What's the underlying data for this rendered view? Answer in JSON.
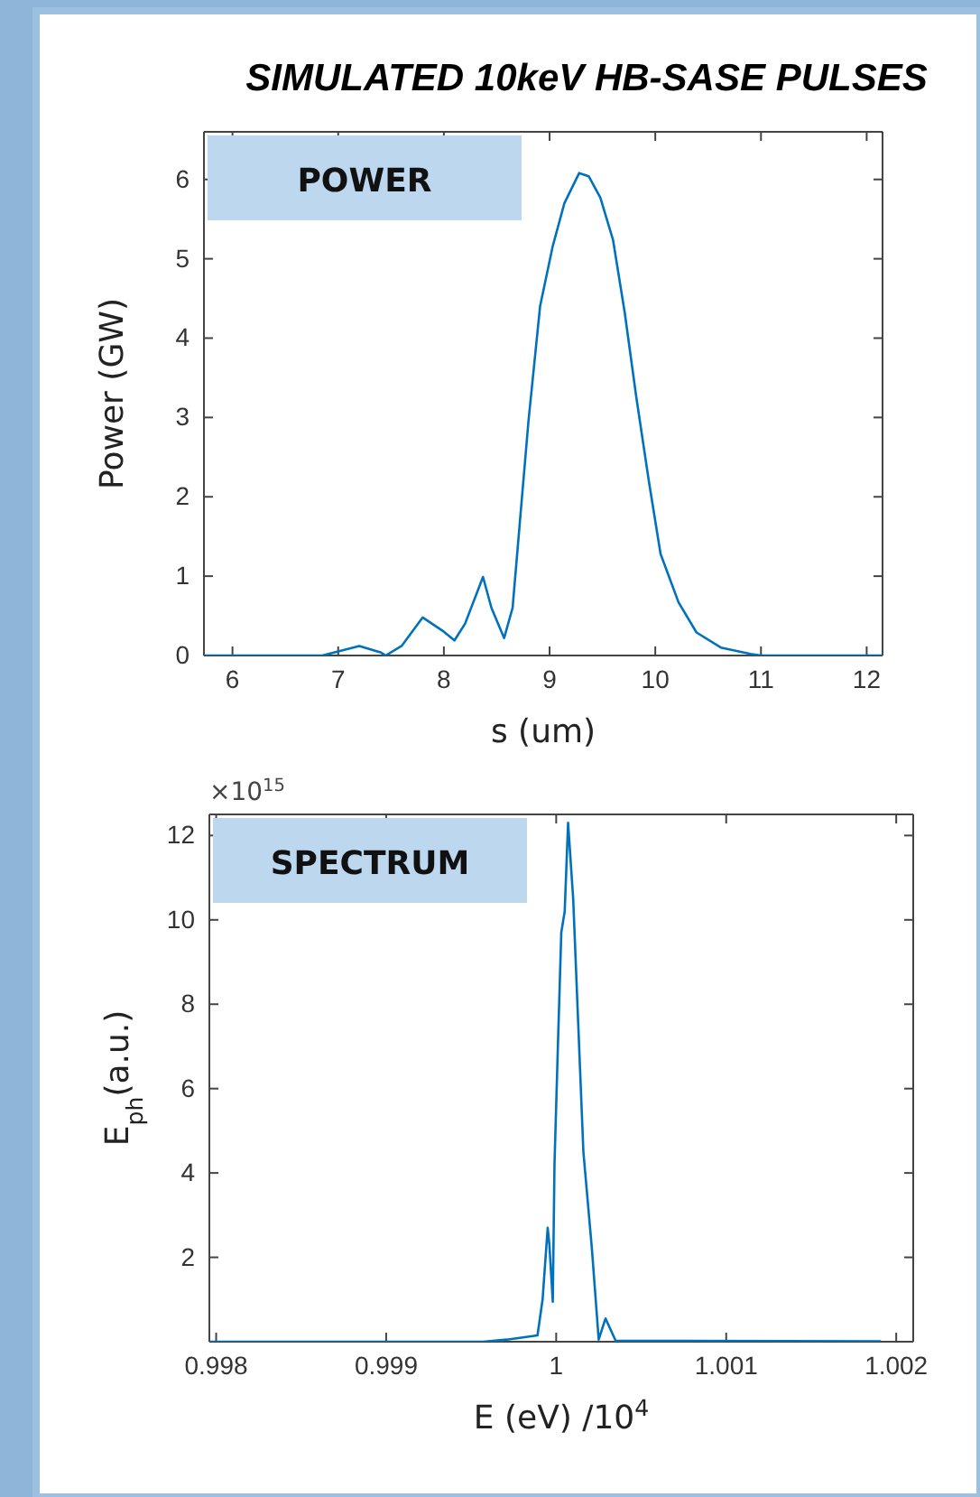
{
  "chart_data": [
    {
      "type": "line",
      "title": "SIMULATED 10keV HB-SASE PULSES",
      "xlabel": "s (um)",
      "ylabel": "Power (GW)",
      "annotations": [
        "POWER"
      ],
      "x": [
        5.73,
        6.85,
        7.0,
        7.2,
        7.4,
        7.45,
        7.6,
        7.8,
        8.0,
        8.1,
        8.2,
        8.37,
        8.45,
        8.57,
        8.65,
        8.72,
        8.8,
        8.91,
        9.03,
        9.14,
        9.28,
        9.37,
        9.48,
        9.6,
        9.71,
        9.82,
        9.94,
        10.05,
        10.22,
        10.39,
        10.62,
        10.9,
        11.0,
        12.15
      ],
      "series": [
        {
          "color": "#0072bd",
          "values": [
            0,
            0,
            0.05,
            0.12,
            0.04,
            0,
            0.12,
            0.48,
            0.3,
            0.19,
            0.4,
            0.99,
            0.6,
            0.22,
            0.6,
            1.7,
            2.95,
            4.4,
            5.16,
            5.7,
            6.08,
            6.04,
            5.77,
            5.24,
            4.33,
            3.26,
            2.19,
            1.28,
            0.67,
            0.29,
            0.1,
            0.02,
            0,
            0
          ]
        }
      ],
      "xlim": [
        5.73,
        12.15
      ],
      "xticks": [
        6,
        7,
        8,
        9,
        10,
        11,
        12
      ],
      "ylim": [
        0,
        6.6
      ],
      "yticks": [
        0,
        1,
        2,
        3,
        4,
        5,
        6
      ],
      "grid": false
    },
    {
      "type": "line",
      "xlabel": "E (eV) /10$^{4}$",
      "ylabel": "E$_{ph}$(a.u.)",
      "annotations": [
        "SPECTRUM",
        "×10$^{15}$"
      ],
      "x": [
        0.99796,
        0.99882,
        0.99957,
        0.99971,
        0.99989,
        0.99992,
        0.99995,
        0.99996,
        0.99998,
        0.99999,
        1.00001,
        1.00003,
        1.00005,
        1.00007,
        1.0001,
        1.00013,
        1.00016,
        1.00021,
        1.00025,
        1.00029,
        1.00035,
        1.00063,
        1.00191
      ],
      "series": [
        {
          "color": "#0072bd",
          "values": [
            0,
            0,
            0,
            0.05,
            0.15,
            1.0,
            2.7,
            2.3,
            0.95,
            4.2,
            7.0,
            9.7,
            10.2,
            12.3,
            10.5,
            7.5,
            4.5,
            2.2,
            0.05,
            0.55,
            0.02,
            0.02,
            0.01
          ]
        }
      ],
      "xlim": [
        0.99796,
        1.0021
      ],
      "xticks": [
        0.998,
        0.999,
        1,
        1.001,
        1.002
      ],
      "ylim": [
        0,
        12.5
      ],
      "yticks": [
        2,
        4,
        6,
        8,
        10,
        12
      ],
      "grid": false
    }
  ]
}
